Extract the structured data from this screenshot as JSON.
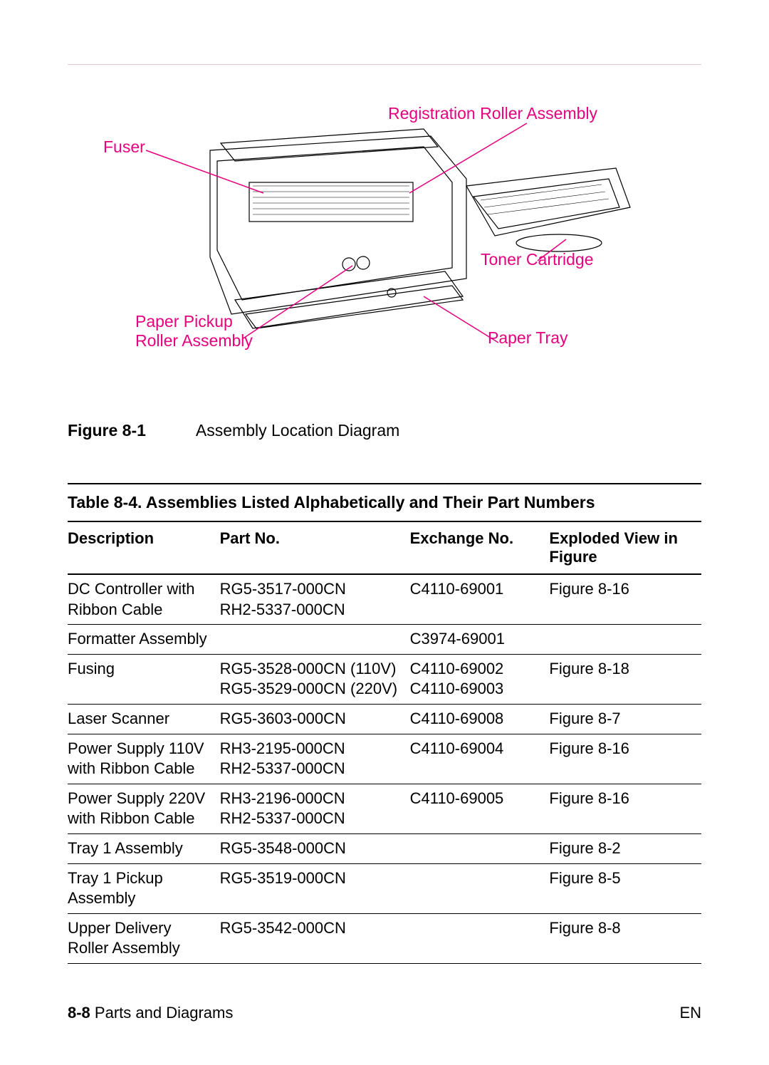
{
  "colors": {
    "callout": "#e6007e",
    "text": "#000000",
    "hr": "#e5c9c9",
    "rule": "#000000"
  },
  "diagram": {
    "labels": {
      "fuser": "Fuser",
      "registration": "Registration Roller Assembly",
      "toner": "Toner Cartridge",
      "paper_pickup_l1": "Paper Pickup",
      "paper_pickup_l2": "Roller Assembly",
      "paper_tray": "Paper Tray"
    }
  },
  "figure": {
    "label": "Figure 8-1",
    "caption": "Assembly Location Diagram"
  },
  "table": {
    "title": "Table 8-4. Assemblies Listed Alphabetically and Their Part Numbers",
    "headers": {
      "description": "Description",
      "part_no": "Part No.",
      "exchange_no": "Exchange No.",
      "exploded_view": "Exploded View in Figure"
    },
    "rows": [
      {
        "description": "DC Controller with Ribbon Cable",
        "part_no": "RG5-3517-000CN\nRH2-5337-000CN",
        "exchange_no": "C4110-69001",
        "exploded_view": "Figure 8-16"
      },
      {
        "description": "Formatter Assembly",
        "part_no": "",
        "exchange_no": "C3974-69001",
        "exploded_view": ""
      },
      {
        "description": "Fusing",
        "part_no": "RG5-3528-000CN (110V)\nRG5-3529-000CN (220V)",
        "exchange_no": "C4110-69002\nC4110-69003",
        "exploded_view": "Figure 8-18"
      },
      {
        "description": "Laser Scanner",
        "part_no": "RG5-3603-000CN",
        "exchange_no": "C4110-69008",
        "exploded_view": "Figure 8-7"
      },
      {
        "description": "Power Supply 110V with Ribbon Cable",
        "part_no": "RH3-2195-000CN\nRH2-5337-000CN",
        "exchange_no": "C4110-69004",
        "exploded_view": "Figure 8-16"
      },
      {
        "description": "Power Supply 220V with Ribbon Cable",
        "part_no": "RH3-2196-000CN\nRH2-5337-000CN",
        "exchange_no": "C4110-69005",
        "exploded_view": "Figure 8-16"
      },
      {
        "description": "Tray 1 Assembly",
        "part_no": "RG5-3548-000CN",
        "exchange_no": "",
        "exploded_view": "Figure 8-2"
      },
      {
        "description": "Tray 1 Pickup Assembly",
        "part_no": "RG5-3519-000CN",
        "exchange_no": "",
        "exploded_view": "Figure 8-5"
      },
      {
        "description": "Upper Delivery Roller Assembly",
        "part_no": "RG5-3542-000CN",
        "exchange_no": "",
        "exploded_view": "Figure 8-8"
      }
    ]
  },
  "footer": {
    "page_no": "8-8",
    "section": "Parts and Diagrams",
    "lang": "EN"
  }
}
